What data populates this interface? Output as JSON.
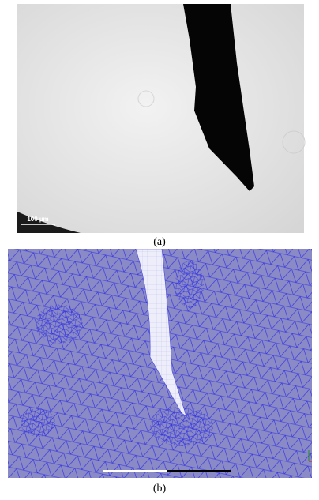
{
  "figure": {
    "panels": [
      {
        "label": "(a)",
        "scale_bar": "100 µm"
      },
      {
        "label": "(b)"
      }
    ]
  }
}
